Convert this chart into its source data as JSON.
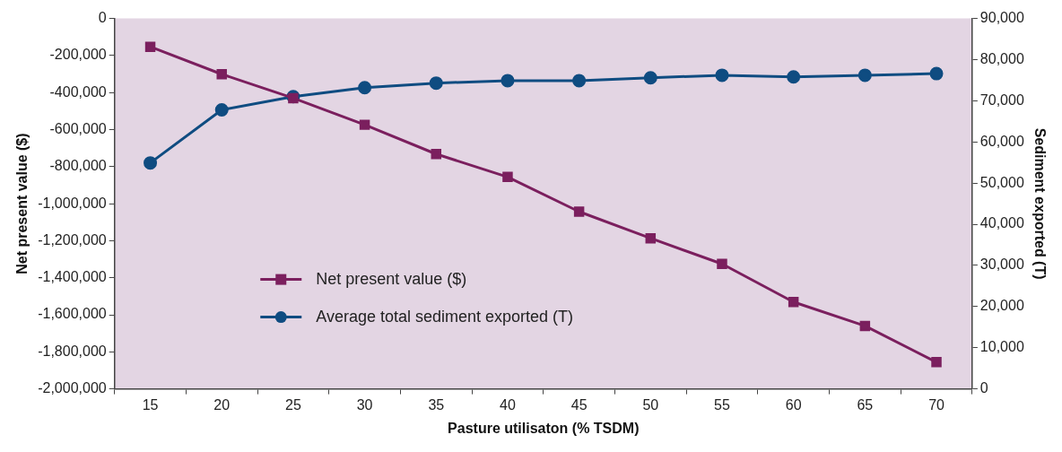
{
  "chart_data": {
    "type": "line",
    "xlabel": "Pasture utilisaton (% TSDM)",
    "ylabel": "Net present value ($)",
    "y2label": "Sediment exported (T)",
    "categories": [
      "15",
      "20",
      "25",
      "30",
      "35",
      "40",
      "45",
      "50",
      "55",
      "60",
      "65",
      "70"
    ],
    "series": [
      {
        "name": "Net present value ($)",
        "color": "#7b1f5e",
        "marker": "square",
        "values": [
          -153000,
          -301000,
          -430000,
          -574000,
          -732000,
          -856000,
          -1043000,
          -1187000,
          -1325000,
          -1531000,
          -1660000,
          -1856000
        ]
      },
      {
        "name": "Average total sediment exported (T)",
        "color": "#0f4c81",
        "marker": "circle",
        "axis": "y2",
        "values": [
          54900,
          67800,
          71000,
          73200,
          74300,
          74900,
          74900,
          75600,
          76200,
          75800,
          76200,
          76600
        ]
      }
    ],
    "ylim": [
      -2000000,
      0
    ],
    "yticks": [
      {
        "value": -2000000,
        "label": "-2,000,000"
      },
      {
        "value": -1800000,
        "label": "-1,800,000"
      },
      {
        "value": -1600000,
        "label": "-1,600,000"
      },
      {
        "value": -1400000,
        "label": "-1,400,000"
      },
      {
        "value": -1200000,
        "label": "-1,200,000"
      },
      {
        "value": -1000000,
        "label": "-1,000,000"
      },
      {
        "value": -800000,
        "label": "-800,000"
      },
      {
        "value": -600000,
        "label": "-600,000"
      },
      {
        "value": -400000,
        "label": "-400,000"
      },
      {
        "value": -200000,
        "label": "-200,000"
      },
      0
    ],
    "y2lim": [
      0,
      90000
    ],
    "y2ticks": [
      0,
      {
        "value": 10000,
        "label": "10,000"
      },
      {
        "value": 20000,
        "label": "20,000"
      },
      {
        "value": 30000,
        "label": "30,000"
      },
      {
        "value": 40000,
        "label": "40,000"
      },
      {
        "value": 50000,
        "label": "50,000"
      },
      {
        "value": 60000,
        "label": "60,000"
      },
      {
        "value": 70000,
        "label": "70,000"
      },
      {
        "value": 80000,
        "label": "80,000"
      },
      {
        "value": 90000,
        "label": "90,000"
      }
    ],
    "grid": false,
    "legend": "bottom left"
  }
}
